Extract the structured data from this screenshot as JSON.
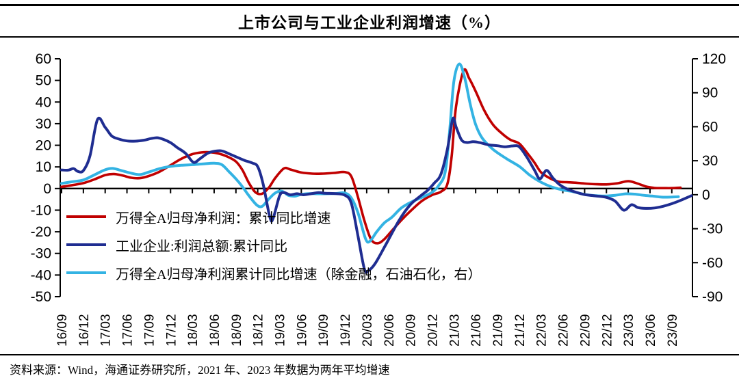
{
  "title": "上市公司与工业企业利润增速（%）",
  "source_note": "资料来源：Wind，海通证券研究所，2021 年、2023 年数据为两年平均增速",
  "colors": {
    "red": "#C00000",
    "navy": "#1F2D91",
    "cyan": "#33B3E3",
    "axis": "#000000"
  },
  "legend": [
    {
      "label": "万得全A归母净利润：累计同比增速",
      "color": "red"
    },
    {
      "label": "工业企业:利润总额:累计同比",
      "color": "navy"
    },
    {
      "label": "万得全A归母净利润累计同比增速（除金融，石油石化，右）",
      "color": "cyan"
    }
  ],
  "chart_data": {
    "type": "line",
    "title": "上市公司与工业企业利润增速（%）",
    "x_labels": [
      "16/09",
      "16/12",
      "17/03",
      "17/06",
      "17/09",
      "17/12",
      "18/03",
      "18/06",
      "18/09",
      "18/12",
      "19/03",
      "19/06",
      "19/09",
      "19/12",
      "20/03",
      "20/06",
      "20/09",
      "20/12",
      "21/03",
      "21/06",
      "21/09",
      "21/12",
      "22/03",
      "22/06",
      "22/09",
      "22/12",
      "23/03",
      "23/06",
      "23/09"
    ],
    "left_axis": {
      "min": -50,
      "max": 60,
      "step": 10,
      "ticks": [
        60,
        50,
        40,
        30,
        20,
        10,
        0,
        -10,
        -20,
        -30,
        -40,
        -50
      ]
    },
    "right_axis": {
      "min": -90,
      "max": 120,
      "step": 30,
      "ticks": [
        120,
        90,
        60,
        30,
        0,
        -30,
        -60,
        -90
      ]
    },
    "grid": false,
    "legend_position": "inside-left",
    "series": [
      {
        "name": "万得全A归母净利润：累计同比增速",
        "axis": "left",
        "color": "red",
        "points": [
          [
            0,
            0.8
          ],
          [
            0.5,
            1.6
          ],
          [
            1,
            2.5
          ],
          [
            1.5,
            4.2
          ],
          [
            2,
            6.2
          ],
          [
            2.4,
            6.7
          ],
          [
            2.8,
            6.0
          ],
          [
            3.2,
            5.0
          ],
          [
            3.6,
            4.8
          ],
          [
            4,
            5.8
          ],
          [
            4.5,
            7.8
          ],
          [
            5,
            10.8
          ],
          [
            5.5,
            13.8
          ],
          [
            6,
            15.9
          ],
          [
            6.4,
            16.7
          ],
          [
            6.8,
            16.8
          ],
          [
            7.2,
            16.2
          ],
          [
            7.6,
            14.8
          ],
          [
            8,
            12.5
          ],
          [
            8.3,
            8.5
          ],
          [
            8.6,
            2.5
          ],
          [
            8.9,
            -1.8
          ],
          [
            9.2,
            -2.4
          ],
          [
            9.5,
            0.3
          ],
          [
            9.8,
            4.8
          ],
          [
            10.2,
            9.3
          ],
          [
            10.5,
            8.8
          ],
          [
            11,
            7.4
          ],
          [
            11.5,
            6.9
          ],
          [
            12,
            6.9
          ],
          [
            12.5,
            7.2
          ],
          [
            13,
            7.6
          ],
          [
            13.3,
            5.5
          ],
          [
            13.6,
            -4
          ],
          [
            13.9,
            -15
          ],
          [
            14.2,
            -23.5
          ],
          [
            14.5,
            -25.3
          ],
          [
            14.8,
            -23.5
          ],
          [
            15.2,
            -19
          ],
          [
            15.6,
            -14.5
          ],
          [
            16,
            -10.5
          ],
          [
            16.5,
            -6
          ],
          [
            17,
            -3
          ],
          [
            17.4,
            -1.5
          ],
          [
            17.7,
            2
          ],
          [
            17.9,
            15
          ],
          [
            18.1,
            38
          ],
          [
            18.45,
            54.5
          ],
          [
            18.7,
            51
          ],
          [
            19,
            45
          ],
          [
            19.4,
            36
          ],
          [
            19.8,
            29.5
          ],
          [
            20.2,
            25.5
          ],
          [
            20.6,
            22.5
          ],
          [
            21,
            20.8
          ],
          [
            21.4,
            16
          ],
          [
            21.7,
            12
          ],
          [
            22,
            7.5
          ],
          [
            22.4,
            4.8
          ],
          [
            22.8,
            3.2
          ],
          [
            23.2,
            2.9
          ],
          [
            23.6,
            2.7
          ],
          [
            24,
            2.3
          ],
          [
            24.5,
            2.0
          ],
          [
            25,
            1.9
          ],
          [
            25.5,
            2.4
          ],
          [
            26,
            3.4
          ],
          [
            26.4,
            2.4
          ],
          [
            26.8,
            1.0
          ],
          [
            27.2,
            0.3
          ],
          [
            27.6,
            0.2
          ],
          [
            28,
            0.2
          ],
          [
            28.4,
            0.4
          ]
        ]
      },
      {
        "name": "工业企业:利润总额:累计同比",
        "axis": "left",
        "color": "navy",
        "points": [
          [
            0,
            8.6
          ],
          [
            0.3,
            8.5
          ],
          [
            0.55,
            9.2
          ],
          [
            0.75,
            7.9
          ],
          [
            1,
            8.3
          ],
          [
            1.3,
            15
          ],
          [
            1.65,
            32
          ],
          [
            2,
            28.3
          ],
          [
            2.3,
            24.3
          ],
          [
            2.6,
            23.0
          ],
          [
            3,
            22.0
          ],
          [
            3.4,
            21.9
          ],
          [
            3.8,
            22.4
          ],
          [
            4.1,
            23.1
          ],
          [
            4.4,
            23.5
          ],
          [
            4.7,
            22.6
          ],
          [
            5,
            21.2
          ],
          [
            5.3,
            19
          ],
          [
            5.7,
            16.2
          ],
          [
            6.05,
            12.1
          ],
          [
            6.35,
            13.8
          ],
          [
            6.7,
            16.3
          ],
          [
            7,
            17.2
          ],
          [
            7.35,
            17.4
          ],
          [
            7.7,
            16
          ],
          [
            8,
            14.7
          ],
          [
            8.4,
            13
          ],
          [
            8.75,
            11.8
          ],
          [
            9,
            10.1
          ],
          [
            9.25,
            2
          ],
          [
            9.55,
            -13
          ],
          [
            9.7,
            -14
          ],
          [
            10,
            -3.4
          ],
          [
            10.2,
            -1.9
          ],
          [
            10.5,
            -2.9
          ],
          [
            10.8,
            -2.4
          ],
          [
            11.1,
            -2.9
          ],
          [
            11.5,
            -2.3
          ],
          [
            11.8,
            -1.9
          ],
          [
            12.1,
            -2.2
          ],
          [
            12.5,
            -2.3
          ],
          [
            13,
            -3.1
          ],
          [
            13.3,
            -7
          ],
          [
            13.6,
            -22
          ],
          [
            13.9,
            -37.4
          ],
          [
            14.1,
            -37.8
          ],
          [
            14.4,
            -34.5
          ],
          [
            14.9,
            -25.5
          ],
          [
            15.5,
            -14.5
          ],
          [
            16,
            -7.5
          ],
          [
            16.5,
            -3.2
          ],
          [
            16.8,
            -0.8
          ],
          [
            17.1,
            2.5
          ],
          [
            17.4,
            6.5
          ],
          [
            17.7,
            18
          ],
          [
            17.95,
            32.2
          ],
          [
            18.1,
            28.5
          ],
          [
            18.35,
            22.5
          ],
          [
            18.6,
            21.3
          ],
          [
            18.9,
            21.7
          ],
          [
            19.2,
            21.2
          ],
          [
            19.6,
            20.2
          ],
          [
            20,
            19.8
          ],
          [
            20.35,
            19.3
          ],
          [
            20.7,
            19.7
          ],
          [
            21,
            19.3
          ],
          [
            21.35,
            14.5
          ],
          [
            21.7,
            8.5
          ],
          [
            21.95,
            4.5
          ],
          [
            22.25,
            8.4
          ],
          [
            22.55,
            4.8
          ],
          [
            22.85,
            1.8
          ],
          [
            23.15,
            0
          ],
          [
            23.45,
            -1.2
          ],
          [
            24,
            -2.8
          ],
          [
            24.5,
            -3.4
          ],
          [
            25,
            -4.1
          ],
          [
            25.4,
            -5.8
          ],
          [
            25.8,
            -10
          ],
          [
            26.15,
            -7.5
          ],
          [
            26.45,
            -8.8
          ],
          [
            26.8,
            -9.2
          ],
          [
            27.2,
            -9
          ],
          [
            27.6,
            -8.2
          ],
          [
            28,
            -7
          ],
          [
            28.4,
            -5.5
          ],
          [
            28.9,
            -3.3
          ]
        ]
      },
      {
        "name": "万得全A归母净利润累计同比增速（除金融，石油石化，右）",
        "axis": "right",
        "color": "cyan",
        "points": [
          [
            0,
            10
          ],
          [
            0.5,
            11.5
          ],
          [
            1,
            13
          ],
          [
            1.5,
            17.5
          ],
          [
            2,
            22
          ],
          [
            2.35,
            23.2
          ],
          [
            2.8,
            21
          ],
          [
            3.2,
            19
          ],
          [
            3.6,
            17.8
          ],
          [
            4,
            20
          ],
          [
            4.5,
            23
          ],
          [
            5,
            25
          ],
          [
            5.5,
            26
          ],
          [
            6,
            26.5
          ],
          [
            6.5,
            27.2
          ],
          [
            7,
            27.8
          ],
          [
            7.35,
            26.5
          ],
          [
            7.7,
            20
          ],
          [
            8,
            14
          ],
          [
            8.3,
            7
          ],
          [
            8.6,
            -1
          ],
          [
            8.95,
            -9
          ],
          [
            9.2,
            -10.3
          ],
          [
            9.5,
            -4
          ],
          [
            9.8,
            1.5
          ],
          [
            10.1,
            3.2
          ],
          [
            10.4,
            -0.5
          ],
          [
            10.7,
            -1.3
          ],
          [
            11,
            0.3
          ],
          [
            11.4,
            1.0
          ],
          [
            11.8,
            0.8
          ],
          [
            12.2,
            0.9
          ],
          [
            12.6,
            1.1
          ],
          [
            13,
            1.5
          ],
          [
            13.3,
            -3
          ],
          [
            13.6,
            -16
          ],
          [
            13.95,
            -39
          ],
          [
            14.15,
            -41
          ],
          [
            14.45,
            -33
          ],
          [
            14.8,
            -25
          ],
          [
            15.15,
            -20
          ],
          [
            15.6,
            -11.5
          ],
          [
            16.1,
            -6
          ],
          [
            16.6,
            -1.8
          ],
          [
            17,
            2.2
          ],
          [
            17.3,
            8
          ],
          [
            17.6,
            20
          ],
          [
            17.8,
            55
          ],
          [
            18.0,
            100
          ],
          [
            18.25,
            115.5
          ],
          [
            18.5,
            103
          ],
          [
            18.75,
            80
          ],
          [
            19,
            62
          ],
          [
            19.3,
            50
          ],
          [
            19.8,
            40
          ],
          [
            20.4,
            32
          ],
          [
            21,
            25
          ],
          [
            21.5,
            17
          ],
          [
            22,
            11
          ],
          [
            22.5,
            6.8
          ],
          [
            23,
            4.2
          ],
          [
            23.4,
            3
          ],
          [
            24,
            0.2
          ],
          [
            24.5,
            -0.8
          ],
          [
            24.9,
            -1.2
          ],
          [
            25.4,
            -0.5
          ],
          [
            25.9,
            0.8
          ],
          [
            26.3,
            0.5
          ],
          [
            26.7,
            -0.5
          ],
          [
            27.1,
            -1.2
          ],
          [
            27.6,
            -2.2
          ],
          [
            28.3,
            -1.8
          ]
        ]
      }
    ]
  }
}
